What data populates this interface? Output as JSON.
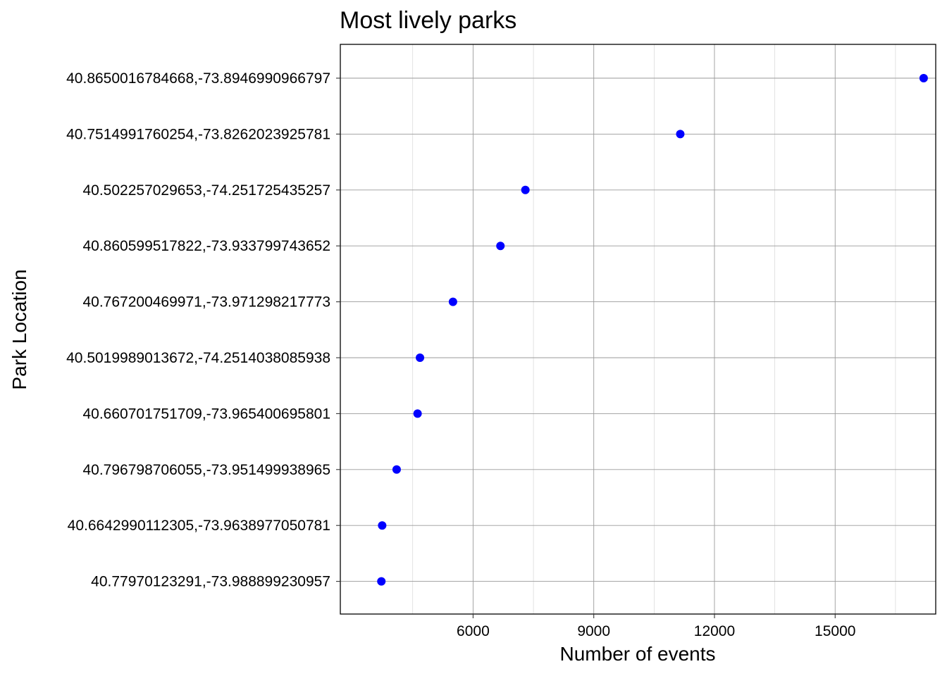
{
  "chart_data": {
    "type": "scatter",
    "title": "Most lively parks",
    "xlabel": "Number of events",
    "ylabel": "Park Location",
    "xlim": [
      2700,
      17500
    ],
    "x_ticks": [
      6000,
      9000,
      12000,
      15000
    ],
    "x_minor_ticks": [
      4500,
      7500,
      10500,
      13500,
      16500
    ],
    "grid": true,
    "point_color": "#0000ff",
    "categories": [
      "40.8650016784668,-73.8946990966797",
      "40.7514991760254,-73.8262023925781",
      "40.502257029653,-74.251725435257",
      "40.860599517822,-73.933799743652",
      "40.767200469971,-73.971298217773",
      "40.5019989013672,-74.2514038085938",
      "40.660701751709,-73.965400695801",
      "40.796798706055,-73.951499938965",
      "40.6642990112305,-73.9638977050781",
      "40.77970123291,-73.988899230957"
    ],
    "values": [
      17200,
      11150,
      7300,
      6680,
      5500,
      4680,
      4620,
      4100,
      3740,
      3720
    ]
  }
}
